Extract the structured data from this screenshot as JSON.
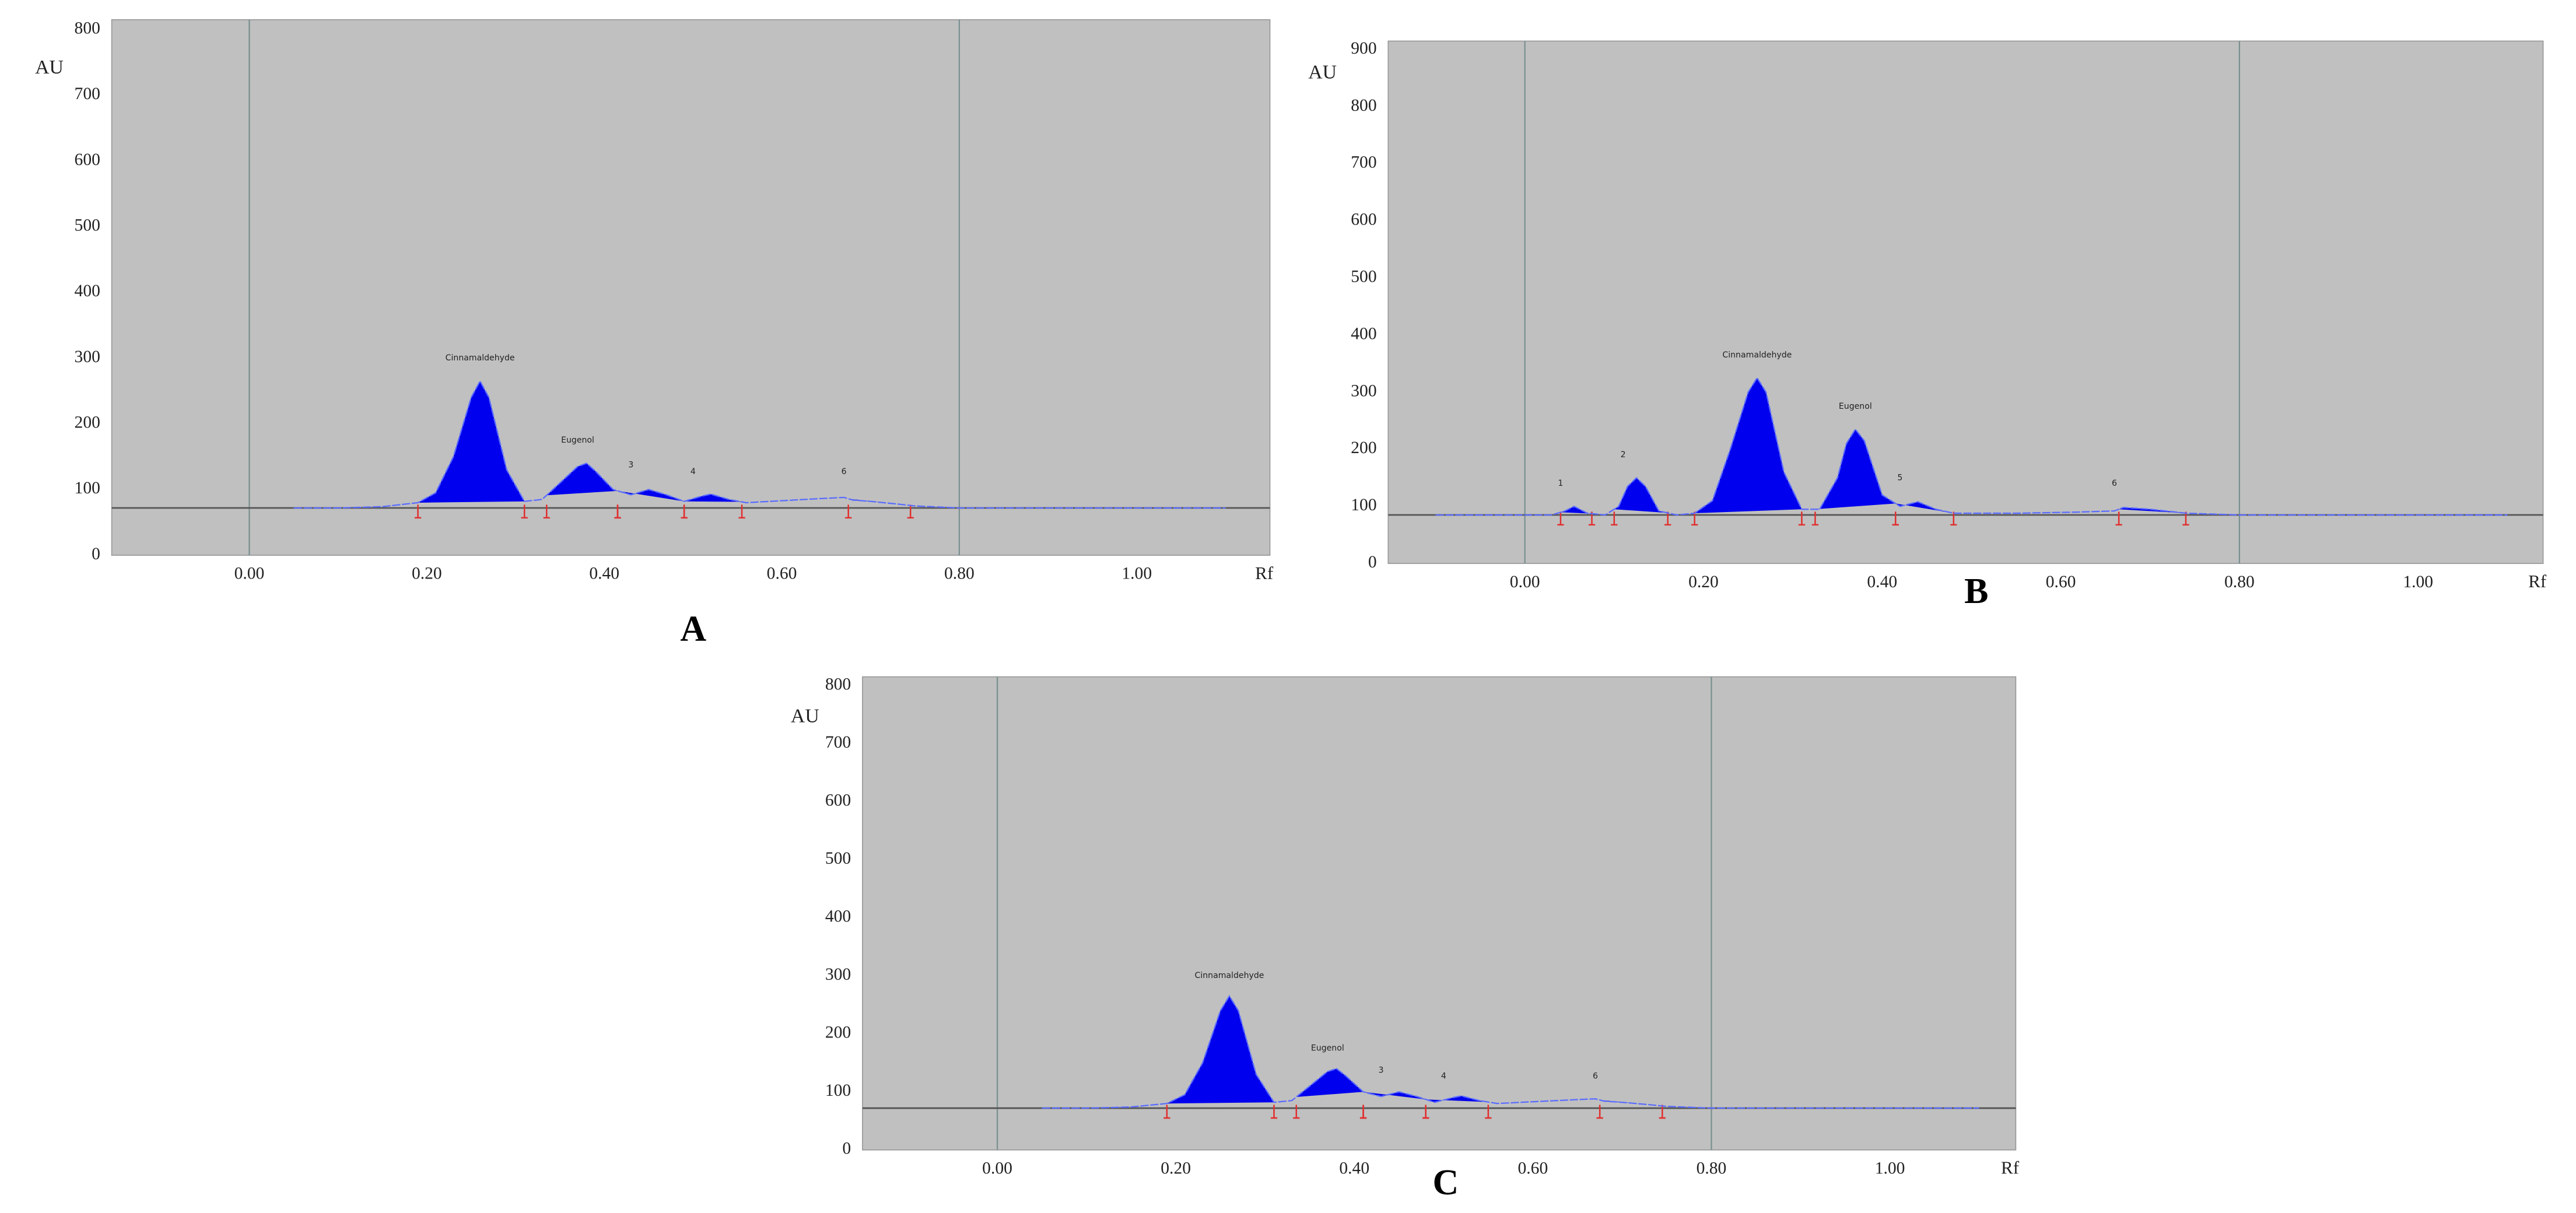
{
  "chart_data": [
    {
      "type": "line",
      "label": "A",
      "y_label": "AU",
      "x_label": "Rf",
      "xlim": [
        -0.155,
        1.15
      ],
      "ylim": [
        0,
        815
      ],
      "xticks": [
        {
          "value": 0,
          "label": "0.00"
        },
        {
          "value": 0.2,
          "label": "0.20"
        },
        {
          "value": 0.4,
          "label": "0.40"
        },
        {
          "value": 0.6,
          "label": "0.60"
        },
        {
          "value": 0.8,
          "label": "0.80"
        },
        {
          "value": 1.0,
          "label": "1.00"
        }
      ],
      "yticks": [
        0,
        100,
        200,
        300,
        400,
        500,
        600,
        700,
        800
      ],
      "vlines": [
        0,
        0.8
      ],
      "baseline": 72,
      "color": "#0000ee",
      "x": [
        0.05,
        0.1,
        0.15,
        0.19,
        0.21,
        0.23,
        0.25,
        0.26,
        0.27,
        0.29,
        0.31,
        0.33,
        0.35,
        0.37,
        0.38,
        0.39,
        0.41,
        0.43,
        0.45,
        0.47,
        0.49,
        0.51,
        0.52,
        0.54,
        0.56,
        0.6,
        0.64,
        0.67,
        0.68,
        0.7,
        0.73,
        0.75,
        0.8,
        1.0,
        1.1
      ],
      "values": [
        72,
        72,
        74,
        80,
        95,
        150,
        240,
        265,
        240,
        130,
        82,
        85,
        110,
        135,
        140,
        128,
        100,
        92,
        100,
        92,
        82,
        90,
        93,
        85,
        80,
        83,
        86,
        88,
        84,
        82,
        78,
        75,
        72,
        72,
        72
      ],
      "peaks": [
        [
          0.19,
          0.31
        ],
        [
          0.335,
          0.415
        ],
        [
          0.415,
          0.49
        ],
        [
          0.49,
          0.555
        ],
        [
          0.675,
          0.745
        ]
      ],
      "annotations": [
        {
          "text": "Cinnamaldehyde",
          "x": 0.26,
          "y": 300
        },
        {
          "text": "Eugenol",
          "x": 0.37,
          "y": 175
        },
        {
          "text": "3",
          "x": 0.43,
          "y": 137
        },
        {
          "text": "4",
          "x": 0.5,
          "y": 127
        },
        {
          "text": "6",
          "x": 0.67,
          "y": 127
        }
      ]
    },
    {
      "type": "line",
      "label": "B",
      "y_label": "AU",
      "x_label": "Rf",
      "xlim": [
        -0.153,
        1.14
      ],
      "ylim": [
        0,
        915
      ],
      "xticks": [
        {
          "value": 0,
          "label": "0.00"
        },
        {
          "value": 0.2,
          "label": "0.20"
        },
        {
          "value": 0.4,
          "label": "0.40"
        },
        {
          "value": 0.6,
          "label": "0.60"
        },
        {
          "value": 0.8,
          "label": "0.80"
        },
        {
          "value": 1.0,
          "label": "1.00"
        }
      ],
      "yticks": [
        0,
        100,
        200,
        300,
        400,
        500,
        600,
        700,
        800,
        900
      ],
      "vlines": [
        0,
        0.8
      ],
      "baseline": 85,
      "color": "#0000ee",
      "x": [
        -0.1,
        0.0,
        0.03,
        0.045,
        0.055,
        0.07,
        0.09,
        0.105,
        0.115,
        0.125,
        0.135,
        0.15,
        0.17,
        0.19,
        0.21,
        0.23,
        0.25,
        0.26,
        0.27,
        0.29,
        0.31,
        0.33,
        0.35,
        0.36,
        0.37,
        0.38,
        0.4,
        0.42,
        0.44,
        0.46,
        0.48,
        0.55,
        0.62,
        0.66,
        0.67,
        0.7,
        0.74,
        0.8,
        1.0,
        1.1
      ],
      "values": [
        85,
        85,
        85,
        92,
        100,
        88,
        85,
        100,
        135,
        150,
        135,
        92,
        85,
        88,
        110,
        200,
        300,
        325,
        300,
        160,
        95,
        95,
        150,
        210,
        235,
        215,
        120,
        100,
        108,
        95,
        88,
        88,
        90,
        92,
        98,
        95,
        88,
        85,
        85,
        85
      ],
      "peaks": [
        [
          0.04,
          0.075
        ],
        [
          0.1,
          0.16
        ],
        [
          0.19,
          0.31
        ],
        [
          0.325,
          0.415
        ],
        [
          0.415,
          0.48
        ],
        [
          0.665,
          0.74
        ]
      ],
      "annotations": [
        {
          "text": "1",
          "x": 0.04,
          "y": 140
        },
        {
          "text": "2",
          "x": 0.11,
          "y": 190
        },
        {
          "text": "Cinnamaldehyde",
          "x": 0.26,
          "y": 365
        },
        {
          "text": "Eugenol",
          "x": 0.37,
          "y": 275
        },
        {
          "text": "5",
          "x": 0.42,
          "y": 150
        },
        {
          "text": "6",
          "x": 0.66,
          "y": 140
        }
      ]
    },
    {
      "type": "line",
      "label": "C",
      "y_label": "AU",
      "x_label": "Rf",
      "xlim": [
        -0.151,
        1.141
      ],
      "ylim": [
        0,
        815
      ],
      "xticks": [
        {
          "value": 0,
          "label": "0.00"
        },
        {
          "value": 0.2,
          "label": "0.20"
        },
        {
          "value": 0.4,
          "label": "0.40"
        },
        {
          "value": 0.6,
          "label": "0.60"
        },
        {
          "value": 0.8,
          "label": "0.80"
        },
        {
          "value": 1.0,
          "label": "1.00"
        }
      ],
      "yticks": [
        0,
        100,
        200,
        300,
        400,
        500,
        600,
        700,
        800
      ],
      "vlines": [
        0,
        0.8
      ],
      "baseline": 72,
      "color": "#0000ee",
      "x": [
        0.05,
        0.1,
        0.15,
        0.19,
        0.21,
        0.23,
        0.25,
        0.26,
        0.27,
        0.29,
        0.31,
        0.33,
        0.35,
        0.37,
        0.38,
        0.39,
        0.41,
        0.43,
        0.45,
        0.47,
        0.49,
        0.51,
        0.52,
        0.54,
        0.56,
        0.6,
        0.64,
        0.67,
        0.68,
        0.7,
        0.73,
        0.75,
        0.8,
        1.0,
        1.1
      ],
      "values": [
        72,
        72,
        74,
        80,
        95,
        150,
        240,
        265,
        240,
        130,
        82,
        85,
        110,
        135,
        140,
        128,
        100,
        92,
        100,
        92,
        82,
        90,
        93,
        85,
        80,
        83,
        86,
        88,
        84,
        82,
        78,
        75,
        72,
        72,
        72
      ],
      "peaks": [
        [
          0.19,
          0.31
        ],
        [
          0.335,
          0.41
        ],
        [
          0.41,
          0.48
        ],
        [
          0.48,
          0.55
        ],
        [
          0.675,
          0.745
        ]
      ],
      "annotations": [
        {
          "text": "Cinnamaldehyde",
          "x": 0.26,
          "y": 300
        },
        {
          "text": "Eugenol",
          "x": 0.37,
          "y": 175
        },
        {
          "text": "3",
          "x": 0.43,
          "y": 137
        },
        {
          "text": "4",
          "x": 0.5,
          "y": 127
        },
        {
          "text": "6",
          "x": 0.67,
          "y": 127
        }
      ]
    }
  ]
}
